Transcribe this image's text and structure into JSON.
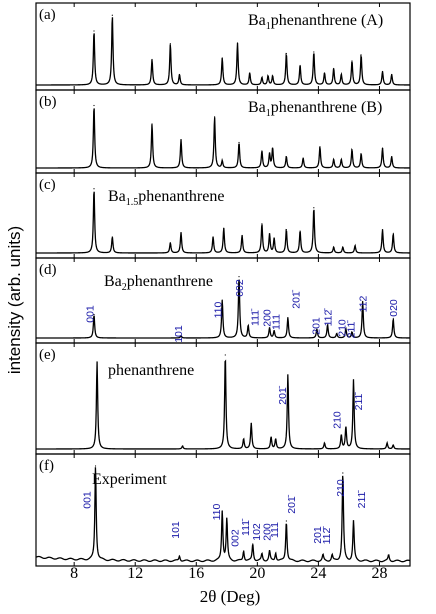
{
  "chart_data": {
    "type": "line",
    "xlabel": "2θ (Deg)",
    "ylabel": "intensity (arb. units)",
    "xlim": [
      5.5,
      30
    ],
    "x_ticks": [
      8,
      12,
      16,
      20,
      24,
      28
    ],
    "x_tick_labels": [
      "8",
      "12",
      "16",
      "20",
      "24",
      "28"
    ],
    "panels": [
      {
        "letter": "(a)",
        "title_main": "Ba",
        "title_sub": "1",
        "title_rest": "phenanthrene (A)",
        "peaks": [
          [
            9.3,
            0.72
          ],
          [
            10.5,
            0.93
          ],
          [
            13.1,
            0.34
          ],
          [
            14.3,
            0.55
          ],
          [
            14.9,
            0.14
          ],
          [
            17.7,
            0.36
          ],
          [
            18.7,
            0.56
          ],
          [
            19.5,
            0.16
          ],
          [
            20.3,
            0.1
          ],
          [
            20.7,
            0.12
          ],
          [
            21.0,
            0.12
          ],
          [
            21.9,
            0.42
          ],
          [
            22.8,
            0.26
          ],
          [
            23.7,
            0.44
          ],
          [
            24.4,
            0.16
          ],
          [
            25.0,
            0.22
          ],
          [
            25.5,
            0.14
          ],
          [
            26.2,
            0.32
          ],
          [
            26.8,
            0.4
          ],
          [
            28.2,
            0.18
          ],
          [
            28.8,
            0.14
          ]
        ]
      },
      {
        "letter": "(b)",
        "title_main": "Ba",
        "title_sub": "1",
        "title_rest": "phenanthrene (B)",
        "peaks": [
          [
            9.3,
            0.88
          ],
          [
            13.1,
            0.62
          ],
          [
            15.0,
            0.4
          ],
          [
            17.2,
            0.72
          ],
          [
            17.7,
            0.1
          ],
          [
            18.8,
            0.36
          ],
          [
            20.3,
            0.24
          ],
          [
            20.8,
            0.2
          ],
          [
            21.0,
            0.28
          ],
          [
            21.9,
            0.16
          ],
          [
            23.0,
            0.14
          ],
          [
            24.1,
            0.3
          ],
          [
            25.0,
            0.12
          ],
          [
            25.5,
            0.12
          ],
          [
            26.2,
            0.26
          ],
          [
            26.8,
            0.2
          ],
          [
            28.2,
            0.28
          ],
          [
            28.8,
            0.16
          ]
        ]
      },
      {
        "letter": "(c)",
        "title_main": "Ba",
        "title_sub": "1.5",
        "title_rest": "phenanthrene",
        "peaks": [
          [
            9.3,
            0.88
          ],
          [
            10.5,
            0.22
          ],
          [
            14.3,
            0.14
          ],
          [
            15.0,
            0.28
          ],
          [
            17.1,
            0.22
          ],
          [
            17.8,
            0.34
          ],
          [
            19.0,
            0.24
          ],
          [
            20.3,
            0.4
          ],
          [
            20.8,
            0.26
          ],
          [
            21.1,
            0.2
          ],
          [
            21.9,
            0.32
          ],
          [
            22.8,
            0.3
          ],
          [
            23.7,
            0.62
          ],
          [
            25.0,
            0.08
          ],
          [
            25.6,
            0.08
          ],
          [
            26.4,
            0.1
          ],
          [
            28.2,
            0.32
          ],
          [
            28.9,
            0.26
          ]
        ]
      },
      {
        "letter": "(d)",
        "title_main": "Ba",
        "title_sub": "2",
        "title_rest": "phenanthrene",
        "peaks": [
          [
            9.3,
            0.32
          ],
          [
            15.0,
            0.03
          ],
          [
            17.7,
            0.52
          ],
          [
            18.8,
            0.84
          ],
          [
            19.4,
            0.17
          ],
          [
            20.8,
            0.14
          ],
          [
            21.1,
            0.1
          ],
          [
            22.0,
            0.28
          ],
          [
            23.9,
            0.12
          ],
          [
            24.6,
            0.18
          ],
          [
            25.2,
            0.06
          ],
          [
            25.8,
            0.12
          ],
          [
            26.2,
            0.08
          ],
          [
            26.9,
            0.5
          ],
          [
            28.9,
            0.26
          ]
        ],
        "hkl": [
          {
            "text": "001",
            "x": 9.0
          },
          {
            "text": "101",
            "x": 14.8
          },
          {
            "text": "110",
            "x": 17.4
          },
          {
            "text": "002",
            "x": 18.8
          },
          {
            "text": "111̄",
            "x": 19.8
          },
          {
            "text": "200",
            "x": 20.6
          },
          {
            "text": "111",
            "x": 21.2
          },
          {
            "text": "201̄",
            "x": 22.5
          },
          {
            "text": "201",
            "x": 23.8
          },
          {
            "text": "112̄",
            "x": 24.6
          },
          {
            "text": "210",
            "x": 25.5
          },
          {
            "text": "211̄",
            "x": 26.1
          },
          {
            "text": "112",
            "x": 26.9
          },
          {
            "text": "020",
            "x": 28.9
          }
        ]
      },
      {
        "letter": "(e)",
        "title_main": "phenanthrene",
        "title_sub": "",
        "title_rest": "",
        "peaks": [
          [
            9.5,
            0.88
          ],
          [
            15.1,
            0.03
          ],
          [
            17.9,
            0.95
          ],
          [
            19.1,
            0.1
          ],
          [
            19.6,
            0.26
          ],
          [
            20.9,
            0.12
          ],
          [
            21.2,
            0.1
          ],
          [
            22.0,
            0.75
          ],
          [
            24.4,
            0.06
          ],
          [
            25.5,
            0.14
          ],
          [
            25.8,
            0.22
          ],
          [
            26.3,
            0.7
          ],
          [
            28.5,
            0.06
          ],
          [
            28.9,
            0.04
          ]
        ],
        "hkl": [
          {
            "text": "201̄",
            "x": 21.6
          },
          {
            "text": "210",
            "x": 25.2
          },
          {
            "text": "211̄",
            "x": 26.6
          }
        ]
      },
      {
        "letter": "(f)",
        "title_main": "Experiment",
        "title_sub": "",
        "title_rest": "",
        "peaks": [
          [
            9.4,
            0.95
          ],
          [
            14.9,
            0.05
          ],
          [
            17.7,
            0.5
          ],
          [
            18.0,
            0.42
          ],
          [
            19.1,
            0.1
          ],
          [
            19.7,
            0.17
          ],
          [
            20.3,
            0.07
          ],
          [
            20.8,
            0.1
          ],
          [
            21.2,
            0.08
          ],
          [
            21.9,
            0.4
          ],
          [
            24.3,
            0.06
          ],
          [
            24.9,
            0.06
          ],
          [
            25.6,
            0.88
          ],
          [
            26.3,
            0.4
          ],
          [
            28.6,
            0.06
          ]
        ],
        "hkl": [
          {
            "text": "001",
            "x": 8.8
          },
          {
            "text": "101",
            "x": 14.6
          },
          {
            "text": "110",
            "x": 17.3
          },
          {
            "text": "002",
            "x": 18.5
          },
          {
            "text": "111̄",
            "x": 19.2
          },
          {
            "text": "102",
            "x": 19.9
          },
          {
            "text": "200",
            "x": 20.6
          },
          {
            "text": "111",
            "x": 21.1
          },
          {
            "text": "201̄",
            "x": 22.2
          },
          {
            "text": "201",
            "x": 23.9
          },
          {
            "text": "112̄",
            "x": 24.5
          },
          {
            "text": "210",
            "x": 25.4
          },
          {
            "text": "211̄",
            "x": 26.8
          }
        ]
      }
    ],
    "grid": false,
    "legend": "none"
  }
}
